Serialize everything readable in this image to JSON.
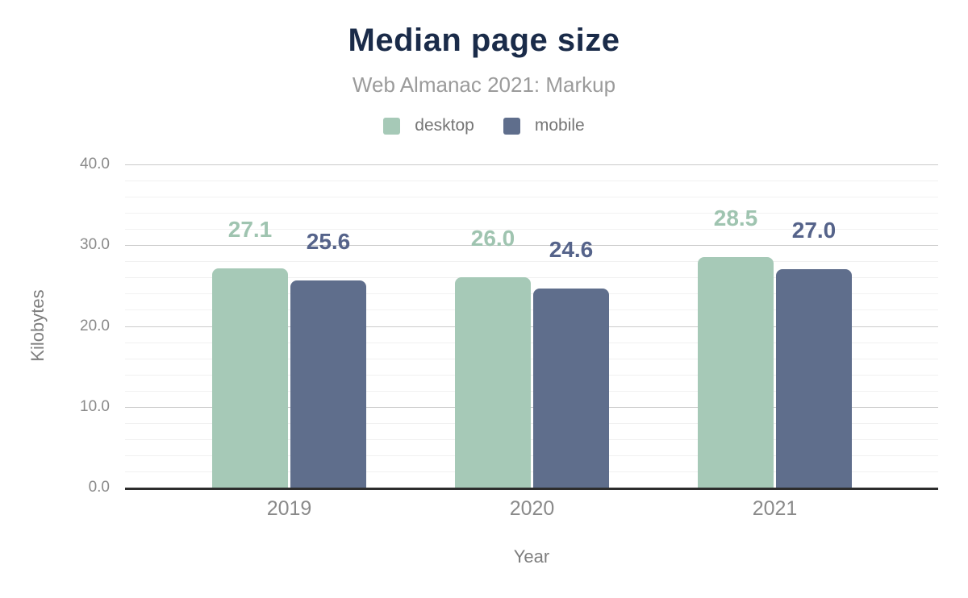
{
  "header": {
    "title": "Median page size",
    "subtitle": "Web Almanac 2021: Markup"
  },
  "legend": {
    "items": [
      {
        "label": "desktop",
        "color": "#a6c9b7"
      },
      {
        "label": "mobile",
        "color": "#5f6e8c"
      }
    ]
  },
  "chart_data": {
    "type": "bar",
    "title": "Median page size",
    "subtitle": "Web Almanac 2021: Markup",
    "categories": [
      "2019",
      "2020",
      "2021"
    ],
    "series": [
      {
        "name": "desktop",
        "color": "#a6c9b7",
        "label_color": "#9fc4b0",
        "values": [
          27.1,
          26.0,
          28.5
        ],
        "labels": [
          "27.1",
          "26.0",
          "28.5"
        ]
      },
      {
        "name": "mobile",
        "color": "#5f6e8c",
        "label_color": "#55638a",
        "values": [
          25.6,
          24.6,
          27.0
        ],
        "labels": [
          "25.6",
          "24.6",
          "27.0"
        ]
      }
    ],
    "xlabel": "Year",
    "ylabel": "Kilobytes",
    "ylim": [
      0,
      40
    ],
    "ytick_values": [
      0,
      10,
      20,
      30,
      40
    ],
    "ytick_labels": [
      "0.0",
      "10.0",
      "20.0",
      "30.0",
      "40.0"
    ],
    "minor_grid_step": 2,
    "grid": true,
    "legend_position": "top",
    "bar_labels_shown": true
  },
  "colors": {
    "title": "#1a2b49",
    "subtitle": "#9b9b9b",
    "tick_text": "#8a8a8a",
    "axis_title_text": "#7e7e7e",
    "legend_text": "#757575",
    "axis_line": "#2d2d2d",
    "grid_major": "#cbcbcb",
    "grid_minor": "#f1f1f1",
    "background": "#ffffff"
  }
}
